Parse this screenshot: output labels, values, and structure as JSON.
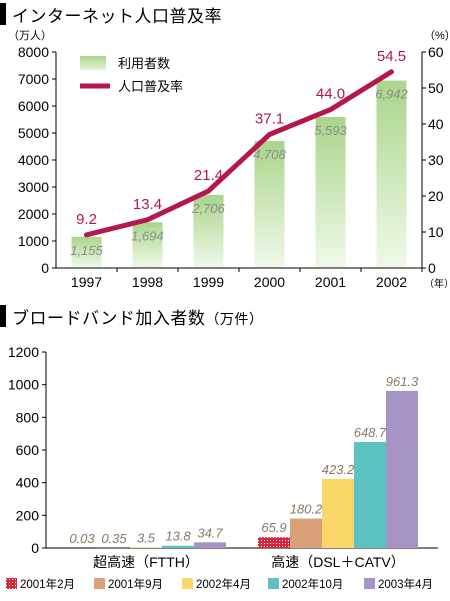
{
  "chart_data": [
    {
      "type": "bar",
      "title": "インターネット人口普及率",
      "y_unit_left": "（万人）",
      "y_unit_right": "（%）",
      "x_unit": "（年）",
      "categories": [
        "1997",
        "1998",
        "1999",
        "2000",
        "2001",
        "2002"
      ],
      "ylim_left": [
        0,
        8000
      ],
      "ylim_right": [
        0,
        60
      ],
      "yticks_left": [
        "0",
        "1000",
        "2000",
        "3000",
        "4000",
        "5000",
        "6000",
        "7000",
        "8000"
      ],
      "yticks_right": [
        "0",
        "10",
        "20",
        "30",
        "40",
        "50",
        "60"
      ],
      "legend_position": "top-left",
      "series": [
        {
          "name": "利用者数",
          "kind": "bar",
          "axis": "left",
          "values": [
            1155,
            1694,
            2706,
            4708,
            5593,
            6942
          ],
          "labels": [
            "1,155",
            "1,694",
            "2,706",
            "4,708",
            "5,593",
            "6,942"
          ],
          "color": "#b6dc98"
        },
        {
          "name": "人口普及率",
          "kind": "line",
          "axis": "right",
          "values": [
            9.2,
            13.4,
            21.4,
            37.1,
            44.0,
            54.5
          ],
          "labels": [
            "9.2",
            "13.4",
            "21.4",
            "37.1",
            "44.0",
            "54.5"
          ],
          "color": "#b5174a"
        }
      ]
    },
    {
      "type": "bar",
      "title": "ブロードバンド加入者数",
      "title_unit": "（万件）",
      "categories": [
        "超高速（FTTH）",
        "高速（DSL＋CATV）"
      ],
      "ylim": [
        0,
        1200
      ],
      "yticks": [
        "0",
        "200",
        "400",
        "600",
        "800",
        "1000",
        "1200"
      ],
      "legend_position": "bottom",
      "series": [
        {
          "name": "2001年2月",
          "values": [
            0.03,
            65.9
          ],
          "labels": [
            "0.03",
            "65.9"
          ],
          "color": "#d7263d"
        },
        {
          "name": "2001年9月",
          "values": [
            0.35,
            180.2
          ],
          "labels": [
            "0.35",
            "180.2"
          ],
          "color": "#d9a07a"
        },
        {
          "name": "2002年4月",
          "values": [
            3.5,
            423.2
          ],
          "labels": [
            "3.5",
            "423.2"
          ],
          "color": "#fbd669"
        },
        {
          "name": "2002年10月",
          "values": [
            13.8,
            648.7
          ],
          "labels": [
            "13.8",
            "648.7"
          ],
          "color": "#5cc3c0"
        },
        {
          "name": "2003年4月",
          "values": [
            34.7,
            961.3
          ],
          "labels": [
            "34.7",
            "961.3"
          ],
          "color": "#a594c5"
        }
      ]
    }
  ]
}
